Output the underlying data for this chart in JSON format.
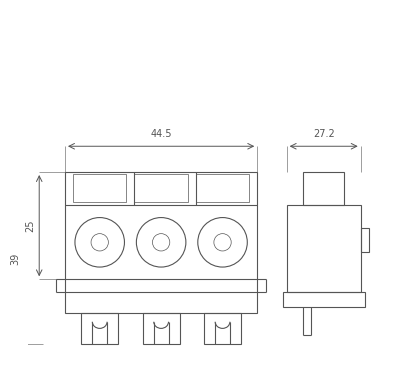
{
  "bg_color": "#ffffff",
  "line_color": "#555555",
  "line_width": 0.8,
  "thin_line": 0.5,
  "dim_44_5": "44.5",
  "dim_27_2": "27.2",
  "dim_25": "25",
  "dim_39": "39"
}
